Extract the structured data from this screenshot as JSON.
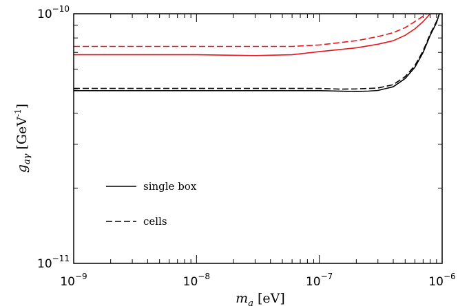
{
  "chart_data": {
    "type": "line",
    "xlabel": {
      "base": "m",
      "sub": "a",
      "unit": " [eV]"
    },
    "ylabel": {
      "base": "g",
      "sub": "aγ",
      "unit": " [GeV",
      "unit_exp": "-1",
      "unit_close": "]"
    },
    "xscale": "log",
    "yscale": "log",
    "xlim": [
      1e-09,
      1e-06
    ],
    "ylim": [
      1e-11,
      1e-10
    ],
    "grid": false,
    "legend_placement": "lower-left",
    "x_ticks": [
      {
        "value": 1e-09,
        "base": "10",
        "exp": "−9"
      },
      {
        "value": 1e-08,
        "base": "10",
        "exp": "−8"
      },
      {
        "value": 1e-07,
        "base": "10",
        "exp": "−7"
      },
      {
        "value": 1e-06,
        "base": "10",
        "exp": "−6"
      }
    ],
    "y_ticks": [
      {
        "value": 1e-11,
        "base": "10",
        "exp": "−11"
      },
      {
        "value": 1e-10,
        "base": "10",
        "exp": "−10"
      }
    ],
    "legend": [
      {
        "label": "single box",
        "style": "solid"
      },
      {
        "label": "cells",
        "style": "dashed"
      }
    ],
    "series": [
      {
        "legend_entry": "single box",
        "color": "#e8141b",
        "style": "solid",
        "points": [
          [
            1e-09,
            6.85e-11
          ],
          [
            3e-09,
            6.85e-11
          ],
          [
            1e-08,
            6.85e-11
          ],
          [
            3e-08,
            6.8e-11
          ],
          [
            6e-08,
            6.85e-11
          ],
          [
            1e-07,
            7.05e-11
          ],
          [
            2e-07,
            7.3e-11
          ],
          [
            3e-07,
            7.55e-11
          ],
          [
            4e-07,
            7.8e-11
          ],
          [
            5e-07,
            8.2e-11
          ],
          [
            6e-07,
            8.7e-11
          ],
          [
            7e-07,
            9.3e-11
          ],
          [
            8e-07,
            1e-10
          ]
        ]
      },
      {
        "legend_entry": "cells",
        "color": "#e8141b",
        "style": "dashed",
        "points": [
          [
            1e-09,
            7.4e-11
          ],
          [
            3e-09,
            7.4e-11
          ],
          [
            1e-08,
            7.4e-11
          ],
          [
            3e-08,
            7.4e-11
          ],
          [
            6e-08,
            7.4e-11
          ],
          [
            1e-07,
            7.5e-11
          ],
          [
            2e-07,
            7.8e-11
          ],
          [
            3e-07,
            8.1e-11
          ],
          [
            4e-07,
            8.4e-11
          ],
          [
            5e-07,
            8.8e-11
          ],
          [
            6e-07,
            9.3e-11
          ],
          [
            7.5e-07,
            1e-10
          ]
        ]
      },
      {
        "legend_entry": "single box",
        "color": "#000000",
        "style": "solid",
        "points": [
          [
            1e-09,
            4.92e-11
          ],
          [
            1e-08,
            4.92e-11
          ],
          [
            1e-07,
            4.92e-11
          ],
          [
            2e-07,
            4.88e-11
          ],
          [
            2.5e-07,
            4.9e-11
          ],
          [
            3e-07,
            4.93e-11
          ],
          [
            4e-07,
            5.1e-11
          ],
          [
            5e-07,
            5.5e-11
          ],
          [
            6e-07,
            6.1e-11
          ],
          [
            7e-07,
            7e-11
          ],
          [
            8e-07,
            8.2e-11
          ],
          [
            9e-07,
            9.2e-11
          ],
          [
            9.5e-07,
            1e-10
          ]
        ]
      },
      {
        "legend_entry": "cells",
        "color": "#000000",
        "style": "dashed",
        "points": [
          [
            1e-09,
            5.02e-11
          ],
          [
            1e-08,
            5.02e-11
          ],
          [
            1e-07,
            5.02e-11
          ],
          [
            1.5e-07,
            4.99e-11
          ],
          [
            2e-07,
            5e-11
          ],
          [
            3e-07,
            5.04e-11
          ],
          [
            4e-07,
            5.2e-11
          ],
          [
            5e-07,
            5.6e-11
          ],
          [
            6e-07,
            6.2e-11
          ],
          [
            7e-07,
            7.1e-11
          ],
          [
            8e-07,
            8.3e-11
          ],
          [
            9e-07,
            9.3e-11
          ],
          [
            9.5e-07,
            1e-10
          ]
        ]
      }
    ]
  }
}
